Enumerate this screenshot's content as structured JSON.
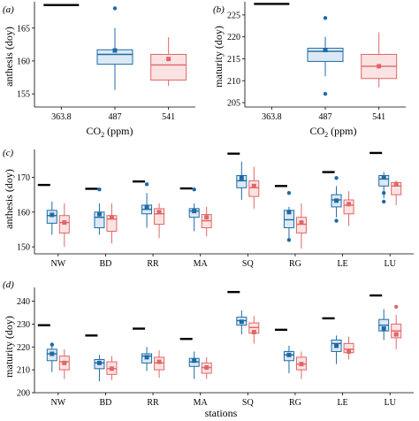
{
  "colors": {
    "blue": "#1f6aa5",
    "red": "#e06666",
    "black": "#000000"
  },
  "chart_data": [
    {
      "panel_label": "(a)",
      "type": "boxplot",
      "ylabel": "anthesis (doy)",
      "xlabel": "CO2 (ppm)",
      "categories": [
        "363.8",
        "487",
        "541"
      ],
      "ylim": [
        153,
        169
      ],
      "yticks": [
        155,
        160,
        165
      ],
      "reference": {
        "category": "363.8",
        "value": 168.5
      },
      "boxes": [
        {
          "category": "487",
          "series": "blue",
          "min": 155.6,
          "q1": 159.5,
          "median": 161.0,
          "q3": 161.7,
          "max": 165.0,
          "mean": 161.6,
          "outliers": [
            168.0
          ]
        },
        {
          "category": "541",
          "series": "red",
          "min": 156.2,
          "q1": 157.1,
          "median": 159.4,
          "q3": 161.0,
          "max": 163.6,
          "mean": 160.3,
          "outliers": []
        }
      ]
    },
    {
      "panel_label": "(b)",
      "type": "boxplot",
      "ylabel": "maturity (doy)",
      "xlabel": "CO2 (ppm)",
      "categories": [
        "363.8",
        "487",
        "541"
      ],
      "ylim": [
        204,
        228
      ],
      "yticks": [
        205,
        210,
        215,
        220,
        225
      ],
      "reference": {
        "category": "363.8",
        "value": 227.5
      },
      "boxes": [
        {
          "category": "487",
          "series": "blue",
          "min": 211.0,
          "q1": 214.4,
          "median": 216.7,
          "q3": 217.4,
          "max": 220.0,
          "mean": 217.0,
          "outliers": [
            207.0,
            224.3
          ]
        },
        {
          "category": "541",
          "series": "red",
          "min": 208.5,
          "q1": 210.5,
          "median": 213.3,
          "q3": 216.0,
          "max": 221.0,
          "mean": 213.3,
          "outliers": []
        }
      ]
    },
    {
      "panel_label": "(c)",
      "type": "boxplot",
      "ylabel": "anthesis (doy)",
      "xlabel": "",
      "categories": [
        "NW",
        "BD",
        "RR",
        "MA",
        "SQ",
        "RG",
        "LE",
        "LU"
      ],
      "ylim": [
        148,
        178
      ],
      "yticks": [
        150,
        160,
        170
      ],
      "references": [
        167.8,
        166.7,
        168.8,
        166.8,
        176.8,
        167.5,
        171.5,
        177.0
      ],
      "blue": [
        {
          "min": 153.5,
          "q1": 156.8,
          "median": 159.0,
          "q3": 160.5,
          "max": 163.0,
          "mean": 159.2,
          "outliers": []
        },
        {
          "min": 153.5,
          "q1": 155.5,
          "median": 158.5,
          "q3": 160.0,
          "max": 162.5,
          "mean": 159.4,
          "outliers": [
            166.5
          ]
        },
        {
          "min": 155.5,
          "q1": 159.5,
          "median": 160.8,
          "q3": 162.0,
          "max": 165.5,
          "mean": 161.3,
          "outliers": [
            168.0
          ]
        },
        {
          "min": 154.5,
          "q1": 158.5,
          "median": 160.3,
          "q3": 161.0,
          "max": 162.5,
          "mean": 160.3,
          "outliers": [
            166.5
          ]
        },
        {
          "min": 163.5,
          "q1": 167.0,
          "median": 169.0,
          "q3": 170.5,
          "max": 174.5,
          "mean": 169.8,
          "outliers": []
        },
        {
          "min": 151.5,
          "q1": 155.5,
          "median": 157.8,
          "q3": 160.5,
          "max": 161.5,
          "mean": 160.0,
          "outliers": [
            165.5,
            152.0
          ]
        },
        {
          "min": 158.5,
          "q1": 161.5,
          "median": 163.5,
          "q3": 165.0,
          "max": 167.5,
          "mean": 163.3,
          "outliers": [
            157.5,
            169.8
          ]
        },
        {
          "min": 164.0,
          "q1": 167.5,
          "median": 169.5,
          "q3": 170.5,
          "max": 171.5,
          "mean": 170.0,
          "outliers": [
            165.5,
            163.0
          ]
        }
      ],
      "red": [
        {
          "min": 150.0,
          "q1": 154.0,
          "median": 157.0,
          "q3": 159.0,
          "max": 162.5,
          "mean": 157.0,
          "outliers": []
        },
        {
          "min": 151.0,
          "q1": 154.5,
          "median": 158.0,
          "q3": 159.0,
          "max": 162.5,
          "mean": 158.5,
          "outliers": []
        },
        {
          "min": 152.5,
          "q1": 156.5,
          "median": 159.5,
          "q3": 161.0,
          "max": 162.5,
          "mean": 160.0,
          "outliers": []
        },
        {
          "min": 153.0,
          "q1": 155.5,
          "median": 157.5,
          "q3": 159.3,
          "max": 161.5,
          "mean": 158.5,
          "outliers": []
        },
        {
          "min": 161.0,
          "q1": 164.5,
          "median": 167.0,
          "q3": 169.0,
          "max": 173.0,
          "mean": 167.5,
          "outliers": []
        },
        {
          "min": 149.5,
          "q1": 154.0,
          "median": 156.5,
          "q3": 158.5,
          "max": 162.5,
          "mean": 157.0,
          "outliers": []
        },
        {
          "min": 156.0,
          "q1": 159.5,
          "median": 162.0,
          "q3": 163.5,
          "max": 166.0,
          "mean": 162.3,
          "outliers": []
        },
        {
          "min": 162.0,
          "q1": 165.0,
          "median": 167.5,
          "q3": 168.5,
          "max": 169.0,
          "mean": 168.0,
          "outliers": []
        }
      ]
    },
    {
      "panel_label": "(d)",
      "type": "boxplot",
      "ylabel": "maturity (doy)",
      "xlabel": "stations",
      "categories": [
        "NW",
        "BD",
        "RR",
        "MA",
        "SQ",
        "RG",
        "LE",
        "LU"
      ],
      "ylim": [
        200,
        246
      ],
      "yticks": [
        200,
        210,
        220,
        230,
        240
      ],
      "references": [
        229.5,
        225.0,
        228.0,
        223.5,
        244.0,
        227.5,
        232.5,
        242.5
      ],
      "blue": [
        {
          "min": 209.0,
          "q1": 214.0,
          "median": 217.0,
          "q3": 219.0,
          "max": 222.0,
          "mean": 217.0,
          "outliers": [
            221.0
          ]
        },
        {
          "min": 205.0,
          "q1": 210.5,
          "median": 213.0,
          "q3": 214.5,
          "max": 216.5,
          "mean": 213.0,
          "outliers": []
        },
        {
          "min": 209.5,
          "q1": 213.0,
          "median": 216.0,
          "q3": 217.0,
          "max": 220.0,
          "mean": 215.5,
          "outliers": []
        },
        {
          "min": 206.0,
          "q1": 211.5,
          "median": 213.5,
          "q3": 215.0,
          "max": 218.0,
          "mean": 214.0,
          "outliers": []
        },
        {
          "min": 225.5,
          "q1": 229.5,
          "median": 231.5,
          "q3": 233.0,
          "max": 236.0,
          "mean": 231.0,
          "outliers": []
        },
        {
          "min": 208.5,
          "q1": 214.0,
          "median": 216.5,
          "q3": 218.0,
          "max": 220.5,
          "mean": 216.5,
          "outliers": []
        },
        {
          "min": 212.5,
          "q1": 218.0,
          "median": 221.5,
          "q3": 223.0,
          "max": 225.0,
          "mean": 220.5,
          "outliers": []
        },
        {
          "min": 223.0,
          "q1": 227.0,
          "median": 229.5,
          "q3": 232.0,
          "max": 236.5,
          "mean": 228.0,
          "outliers": []
        }
      ],
      "red": [
        {
          "min": 206.0,
          "q1": 210.0,
          "median": 213.5,
          "q3": 216.0,
          "max": 219.0,
          "mean": 213.0,
          "outliers": []
        },
        {
          "min": 205.5,
          "q1": 208.0,
          "median": 210.5,
          "q3": 213.5,
          "max": 216.0,
          "mean": 210.5,
          "outliers": []
        },
        {
          "min": 206.5,
          "q1": 210.0,
          "median": 213.0,
          "q3": 215.5,
          "max": 218.5,
          "mean": 213.5,
          "outliers": []
        },
        {
          "min": 206.0,
          "q1": 208.5,
          "median": 211.0,
          "q3": 213.0,
          "max": 215.5,
          "mean": 211.0,
          "outliers": []
        },
        {
          "min": 221.5,
          "q1": 226.0,
          "median": 228.5,
          "q3": 230.5,
          "max": 233.5,
          "mean": 226.5,
          "outliers": []
        },
        {
          "min": 206.0,
          "q1": 210.0,
          "median": 212.5,
          "q3": 215.5,
          "max": 218.0,
          "mean": 212.5,
          "outliers": []
        },
        {
          "min": 214.5,
          "q1": 217.5,
          "median": 219.0,
          "q3": 221.5,
          "max": 224.5,
          "mean": 218.0,
          "outliers": []
        },
        {
          "min": 219.0,
          "q1": 224.0,
          "median": 227.0,
          "q3": 230.0,
          "max": 234.0,
          "mean": 225.5,
          "outliers": [
            237.5
          ]
        }
      ]
    }
  ]
}
